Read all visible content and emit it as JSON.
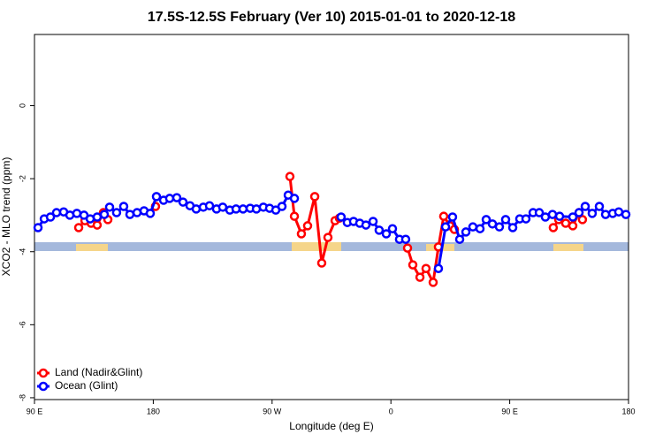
{
  "chart_data": {
    "type": "line",
    "title": "17.5S-12.5S February (Ver 10)   2015-01-01 to 2020-12-18",
    "x_label": "Longitude (deg E)",
    "y_label": "XCO2 - MLO trend (ppm)",
    "xlim": [
      90,
      540
    ],
    "xticks": [
      {
        "value": 90,
        "label": "90 E"
      },
      180,
      {
        "value": 270,
        "label": "90 W"
      },
      {
        "value": 360,
        "label": "0"
      },
      {
        "value": 450,
        "label": "90 E"
      },
      {
        "value": 540,
        "label": "180"
      }
    ],
    "ylim": [
      -8.05,
      1.95
    ],
    "yticks": [
      0,
      -2,
      -4,
      -6,
      -8
    ],
    "legend": "bottom-left",
    "series": [
      {
        "name": "Land (Nadir&Glint)",
        "color": "#ff0000",
        "x": [
          123.5,
          128.2,
          132.9,
          137.5,
          142.2,
          145.6,
          155,
          181.7,
          200,
          283.5,
          286.9,
          292.2,
          296.9,
          302.3,
          307.6,
          312.3,
          317.7,
          321.0,
          350,
          372.6,
          376.6,
          382.0,
          386.6,
          392.0,
          396.0,
          400.0,
          404.7,
          408.1,
          450,
          483.0,
          487.1,
          492.4,
          497.8,
          502.5,
          505.1
        ],
        "values": [
          -3.34,
          -3.15,
          -3.22,
          -3.27,
          -2.93,
          -3.12,
          null,
          -2.76,
          null,
          -1.94,
          -3.03,
          -3.51,
          -3.29,
          -2.49,
          -4.31,
          -3.61,
          -3.15,
          -3.08,
          null,
          -3.9,
          -4.36,
          -4.7,
          -4.46,
          -4.84,
          -3.87,
          -3.03,
          -3.29,
          -3.39,
          null,
          -3.34,
          -3.12,
          -3.22,
          -3.29,
          -2.93,
          -3.12
        ]
      },
      {
        "name": "Ocean (Glint)",
        "color": "#0000ff",
        "x": [
          92.7,
          97.4,
          102.1,
          106.7,
          112.1,
          116.8,
          122.1,
          127.5,
          132.2,
          137.5,
          142.9,
          146.9,
          152.2,
          157.6,
          162.3,
          167.7,
          173.0,
          177.7,
          182.4,
          187.8,
          192.4,
          197.8,
          202.5,
          207.8,
          212.5,
          217.9,
          222.6,
          227.9,
          232.6,
          238.0,
          242.7,
          248.0,
          253.4,
          258.1,
          263.4,
          268.1,
          272.8,
          277.5,
          282.2,
          286.9,
          310,
          322.3,
          327.0,
          331.7,
          336.4,
          341.1,
          346.5,
          351.1,
          356.5,
          361.2,
          366.5,
          371.2,
          385,
          396.0,
          401.4,
          406.7,
          412.1,
          416.8,
          422.1,
          427.5,
          432.2,
          436.9,
          442.2,
          446.9,
          452.3,
          457.6,
          462.3,
          467.7,
          472.4,
          477.0,
          482.4,
          487.8,
          497.8,
          502.5,
          507.2,
          512.5,
          517.9,
          522.6,
          528.0,
          532.6,
          538.0
        ],
        "values": [
          -3.34,
          -3.1,
          -3.05,
          -2.93,
          -2.91,
          -3.0,
          -2.95,
          -3.0,
          -3.1,
          -3.05,
          -2.98,
          -2.78,
          -2.93,
          -2.76,
          -2.98,
          -2.93,
          -2.88,
          -2.95,
          -2.49,
          -2.59,
          -2.54,
          -2.52,
          -2.64,
          -2.74,
          -2.83,
          -2.78,
          -2.74,
          -2.83,
          -2.78,
          -2.86,
          -2.83,
          -2.83,
          -2.81,
          -2.83,
          -2.78,
          -2.81,
          -2.86,
          -2.76,
          -2.45,
          -2.54,
          null,
          -3.05,
          -3.2,
          -3.17,
          -3.22,
          -3.27,
          -3.17,
          -3.41,
          -3.51,
          -3.37,
          -3.66,
          -3.66,
          null,
          -4.46,
          -3.32,
          -3.05,
          -3.66,
          -3.46,
          -3.32,
          -3.37,
          -3.12,
          -3.24,
          -3.32,
          -3.12,
          -3.34,
          -3.1,
          -3.1,
          -2.93,
          -2.93,
          -3.05,
          -2.98,
          -3.03,
          -3.05,
          -2.93,
          -2.76,
          -2.95,
          -2.76,
          -2.98,
          -2.95,
          -2.91,
          -2.98
        ]
      }
    ]
  }
}
